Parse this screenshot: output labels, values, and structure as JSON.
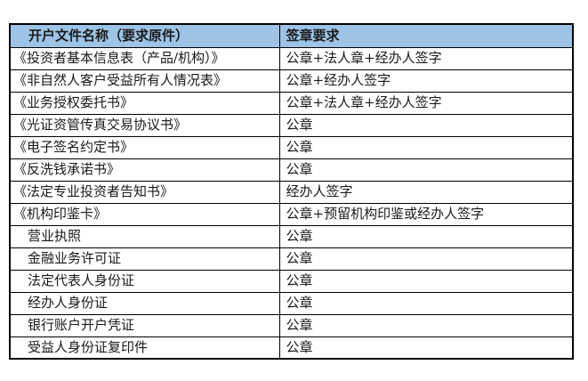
{
  "colors": {
    "header_bg": "#9DC3E6",
    "border": "#000000",
    "text": "#1a1a1a"
  },
  "table": {
    "headers": [
      "开户文件名称（要求原件）",
      "签章要求"
    ],
    "rows": [
      {
        "name": "《投资者基本信息表（产品/机构）》",
        "req": "公章+法人章+经办人签字",
        "indent": false
      },
      {
        "name": "《非自然人客户受益所有人情况表》",
        "req": "公章+经办人签字",
        "indent": false
      },
      {
        "name": "《业务授权委托书》",
        "req": "公章+法人章+经办人签字",
        "indent": false
      },
      {
        "name": "《光证资管传真交易协议书》",
        "req": "公章",
        "indent": false
      },
      {
        "name": "《电子签名约定书》",
        "req": "公章",
        "indent": false
      },
      {
        "name": "《反洗钱承诺书》",
        "req": "公章",
        "indent": false
      },
      {
        "name": "《法定专业投资者告知书》",
        "req": "经办人签字",
        "indent": false
      },
      {
        "name": "《机构印鉴卡》",
        "req": "公章+预留机构印鉴或经办人签字",
        "indent": false
      },
      {
        "name": "营业执照",
        "req": "公章",
        "indent": true
      },
      {
        "name": "金融业务许可证",
        "req": "公章",
        "indent": true
      },
      {
        "name": "法定代表人身份证",
        "req": "公章",
        "indent": true
      },
      {
        "name": "经办人身份证",
        "req": "公章",
        "indent": true
      },
      {
        "name": "银行账户开户凭证",
        "req": "公章",
        "indent": true
      },
      {
        "name": "受益人身份证复印件",
        "req": "公章",
        "indent": true
      }
    ]
  }
}
